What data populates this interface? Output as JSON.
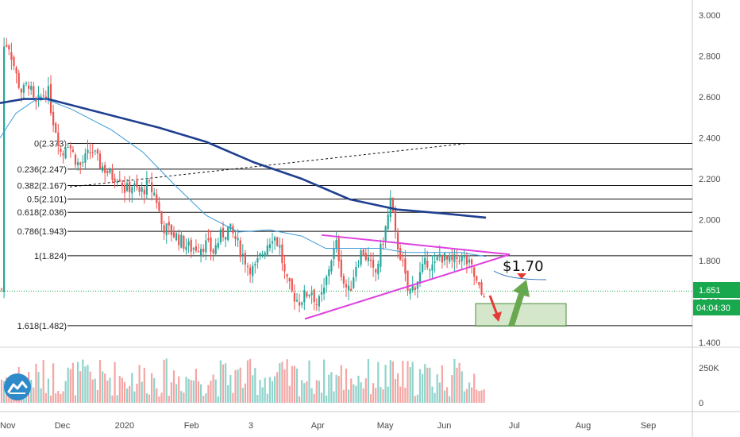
{
  "chart_data": {
    "type": "candlestick",
    "price_axis": {
      "ylim": [
        1.4,
        3.0
      ],
      "tick_labels": [
        "3.000",
        "2.800",
        "2.600",
        "2.400",
        "2.200",
        "2.000",
        "1.800",
        "1.600",
        "1.400"
      ],
      "ticks": [
        3.0,
        2.8,
        2.6,
        2.4,
        2.2,
        2.0,
        1.8,
        1.6,
        1.4
      ]
    },
    "volume_axis": {
      "tick_labels": [
        "250K",
        "0"
      ],
      "ticks": [
        250000,
        0
      ]
    },
    "time_axis": {
      "tick_labels": [
        "Nov",
        "Dec",
        "2020",
        "Feb",
        "3",
        "Apr",
        "May",
        "Jun",
        "Jul",
        "Aug",
        "Sep"
      ]
    },
    "current_price": {
      "label": "1.651",
      "value": 1.651,
      "color": "#1aa84f"
    },
    "countdown": {
      "label": "04:04:30",
      "color": "#1aa84f"
    },
    "fib_levels": [
      {
        "label": "0(2.373)",
        "value": 2.373
      },
      {
        "label": "0.236(2.247)",
        "value": 2.247
      },
      {
        "label": "0.382(2.167)",
        "value": 2.167
      },
      {
        "label": "0.5(2.101)",
        "value": 2.101
      },
      {
        "label": "0.618(2.036)",
        "value": 2.036
      },
      {
        "label": "0.786(1.943)",
        "value": 1.943
      },
      {
        "label": "1(1.824)",
        "value": 1.824
      },
      {
        "label": "1.618(1.482)",
        "value": 1.482
      }
    ],
    "annotations": {
      "price_target": "$1.70",
      "target_zone": {
        "top": 1.59,
        "bottom": 1.48
      },
      "triangle_upper": [
        [
          1.925,
          "Apr"
        ],
        [
          1.83,
          "Jul"
        ]
      ],
      "triangle_lower": [
        [
          1.515,
          "Mar end"
        ],
        [
          1.83,
          "Jul"
        ]
      ]
    },
    "colors": {
      "up": "#26a69a",
      "down": "#ef5350",
      "ma_long": "#1f3f8f",
      "ma_short": "#3a9ad9",
      "triangle": "#e040e0",
      "arrow_down": "#e53935",
      "arrow_up": "#6aa84f",
      "zone_fill": "#b7d7a8",
      "zone_border": "#4c8c3a"
    }
  },
  "logo": {
    "name": "tradingview-logo"
  }
}
